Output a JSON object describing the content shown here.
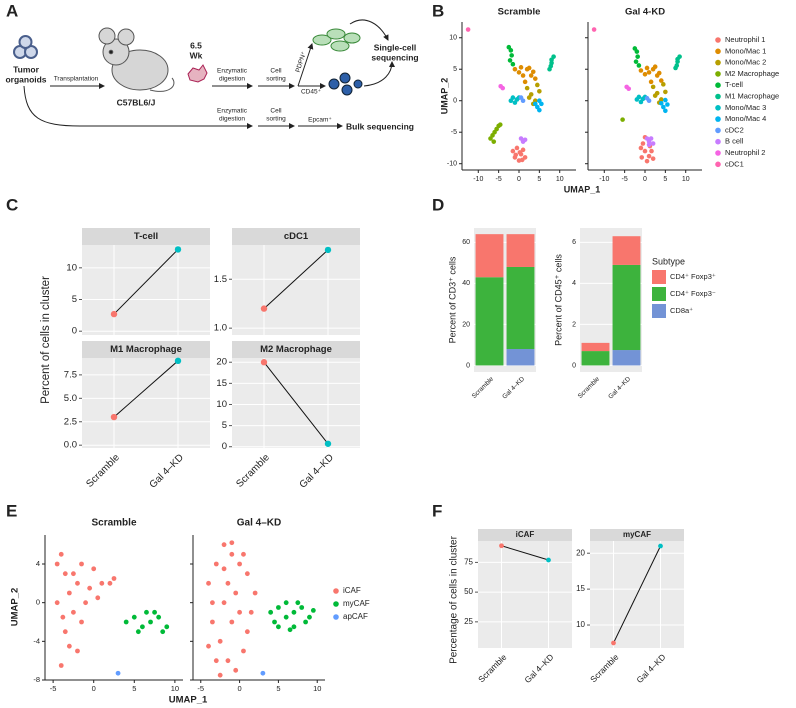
{
  "panel_labels": [
    "A",
    "B",
    "C",
    "D",
    "E",
    "F"
  ],
  "diagram": {
    "organoids": [
      "Tumor",
      "organoids"
    ],
    "transplantation": "Transplantation",
    "mouse": "C57BL6/J",
    "time_value": "6.5",
    "time_unit": "Wk",
    "digestion_1": [
      "Enzymatic",
      "digestion"
    ],
    "sorting_1": [
      "Cell",
      "sorting"
    ],
    "marker_pdpn": "PDPN⁺",
    "marker_cd45": "CD45⁺",
    "single_cell": [
      "Single-cell",
      "sequencing"
    ],
    "digestion_2": [
      "Enzymatic",
      "digestion"
    ],
    "sorting_2": [
      "Cell",
      "sorting"
    ],
    "marker_epcam": "Epcam⁺",
    "bulk": "Bulk sequencing"
  },
  "chart_data": [
    {
      "type": "scatter",
      "facets": [
        "Scramble",
        "Gal 4-KD"
      ],
      "xlabel": "UMAP_1",
      "ylabel": "UMAP_2",
      "xlim": [
        -14,
        14
      ],
      "xticks": [
        -10,
        -5,
        0,
        5,
        10
      ],
      "ylim": [
        -11,
        12.5
      ],
      "yticks": [
        -10,
        -5,
        0,
        5,
        10
      ],
      "series": [
        {
          "name": "Neutrophil 1",
          "color": "#F8766D",
          "points": [
            {
              "x": [
                -1.5,
                -0.5,
                0.5,
                1.5,
                0,
                -1,
                1,
                0.2,
                -0.8,
                0.8
              ],
              "y": [
                -8,
                -7.5,
                -8.5,
                -9,
                -9.5,
                -9,
                -7.8,
                -8.2,
                -8.6,
                -9.4
              ]
            },
            {
              "x": [
                -1,
                0,
                1,
                2,
                0.5,
                -0.5,
                1.2,
                0,
                -0.8,
                1.6
              ],
              "y": [
                -7.5,
                -8,
                -8.8,
                -9.2,
                -9.6,
                -6.8,
                -7.2,
                -5.8,
                -9,
                -8
              ]
            }
          ]
        },
        {
          "name": "Mono/Mac 1",
          "color": "#DE8C00",
          "points": [
            {
              "x": [
                -1,
                0,
                1,
                2,
                3,
                4,
                1.5,
                2.5,
                0.5,
                3.5
              ],
              "y": [
                5,
                4.5,
                4,
                5,
                4,
                3.5,
                3,
                5.2,
                5.3,
                4.6
              ]
            },
            {
              "x": [
                -1,
                0,
                1,
                2,
                3,
                4,
                1.5,
                2.5,
                0.5,
                3.5
              ],
              "y": [
                4.8,
                4.2,
                4.5,
                5,
                4,
                3.2,
                3,
                5.4,
                5.2,
                4.4
              ]
            }
          ]
        },
        {
          "name": "Mono/Mac 2",
          "color": "#B79F00",
          "points": [
            {
              "x": [
                2,
                3,
                4,
                5,
                3.5,
                4.5,
                2.5
              ],
              "y": [
                2,
                1,
                0,
                1.5,
                -0.5,
                2.5,
                0.5
              ]
            },
            {
              "x": [
                2,
                3,
                4,
                5,
                3.5,
                4.5,
                2.5
              ],
              "y": [
                2.2,
                1.2,
                0.2,
                1.4,
                -0.3,
                2.6,
                0.8
              ]
            }
          ]
        },
        {
          "name": "M2 Macrophage",
          "color": "#7CAE00",
          "points": [
            {
              "x": [
                -7,
                -6.5,
                -6,
                -5.5,
                -5,
                -6.2,
                -4.6
              ],
              "y": [
                -6,
                -5.5,
                -5,
                -4.5,
                -4,
                -6.5,
                -3.8
              ]
            },
            {
              "x": [
                -5.5
              ],
              "y": [
                -3
              ]
            }
          ]
        },
        {
          "name": "T-cell",
          "color": "#00BA38",
          "points": [
            {
              "x": [
                -2.5,
                -2,
                -1.8,
                -2.2,
                -1.5
              ],
              "y": [
                8.5,
                8,
                7.2,
                6.4,
                5.8
              ]
            },
            {
              "x": [
                -2.5,
                -2,
                -1.8,
                -2.2,
                -1.5
              ],
              "y": [
                8.3,
                7.8,
                7,
                6.2,
                5.6
              ]
            }
          ]
        },
        {
          "name": "M1 Macrophage",
          "color": "#00C08B",
          "points": [
            {
              "x": [
                7.5,
                8,
                8.5,
                8,
                7.8
              ],
              "y": [
                5,
                6,
                7,
                6.5,
                5.5
              ]
            },
            {
              "x": [
                7.5,
                8,
                8.5,
                8,
                7.8
              ],
              "y": [
                5.2,
                6.2,
                7,
                6.6,
                5.6
              ]
            }
          ]
        },
        {
          "name": "Mono/Mac 3",
          "color": "#00BFC4",
          "points": [
            {
              "x": [
                -2,
                -1.5,
                -1,
                -0.5,
                0
              ],
              "y": [
                0,
                0.5,
                -0.3,
                0.2,
                0.5
              ]
            },
            {
              "x": [
                -2,
                -1.5,
                -1,
                -0.5,
                0
              ],
              "y": [
                0.2,
                0.6,
                -0.2,
                0.3,
                0.6
              ]
            }
          ]
        },
        {
          "name": "Mono/Mac 4",
          "color": "#00B4F0",
          "points": [
            {
              "x": [
                4,
                4.5,
                5,
                5.5,
                5
              ],
              "y": [
                -0.5,
                -1,
                -1.5,
                -0.5,
                0
              ]
            },
            {
              "x": [
                4,
                4.5,
                5,
                5.5,
                5
              ],
              "y": [
                -0.4,
                -1,
                -1.6,
                -0.6,
                0.1
              ]
            }
          ]
        },
        {
          "name": "cDC2",
          "color": "#619CFF",
          "points": [
            {
              "x": [
                0.5,
                1
              ],
              "y": [
                0.5,
                0
              ]
            },
            {
              "x": [
                0.5,
                1
              ],
              "y": [
                0.4,
                0
              ]
            }
          ]
        },
        {
          "name": "B cell",
          "color": "#C77CFF",
          "points": [
            {
              "x": [
                0.5,
                1,
                1.5
              ],
              "y": [
                -6,
                -6.5,
                -6.2
              ]
            },
            {
              "x": [
                0.5,
                1,
                1.5,
                1,
                2
              ],
              "y": [
                -6,
                -6.5,
                -6,
                -7,
                -6.8
              ]
            }
          ]
        },
        {
          "name": "Neutrophil 2",
          "color": "#F564E3",
          "points": [
            {
              "x": [
                -4.5,
                -4
              ],
              "y": [
                2.3,
                2
              ]
            },
            {
              "x": [
                -4.5,
                -4
              ],
              "y": [
                2.2,
                1.9
              ]
            }
          ]
        },
        {
          "name": "cDC1",
          "color": "#FF64B0",
          "points": [
            {
              "x": [
                -12.5
              ],
              "y": [
                11.3
              ]
            },
            {
              "x": [
                -12.5
              ],
              "y": [
                11.3
              ]
            }
          ]
        }
      ]
    },
    {
      "type": "line",
      "ylabel": "Percent of cells in cluster",
      "categories": [
        "Scramble",
        "Gal 4–KD"
      ],
      "point_colors": [
        "#F8766D",
        "#00BFC4"
      ],
      "facets": [
        {
          "title": "T-cell",
          "values": [
            2.7,
            12.9
          ],
          "ylim": [
            -0.6,
            13.6
          ],
          "yticks": [
            0,
            5,
            10
          ]
        },
        {
          "title": "cDC1",
          "values": [
            1.2,
            1.8
          ],
          "ylim": [
            0.93,
            1.85
          ],
          "yticks": [
            {
              "value": 1,
              "label": "1.0"
            },
            1.5
          ]
        },
        {
          "title": "M1 Macrophage",
          "values": [
            3,
            9
          ],
          "ylim": [
            -0.3,
            9.3
          ],
          "yticks": [
            {
              "value": 0,
              "label": "0.0"
            },
            2.5,
            {
              "value": 5,
              "label": "5.0"
            },
            7.5
          ]
        },
        {
          "title": "M2 Macrophage",
          "values": [
            20,
            0.7
          ],
          "ylim": [
            -0.3,
            21
          ],
          "yticks": [
            0,
            5,
            10,
            15,
            20
          ]
        }
      ]
    },
    {
      "type": "bar",
      "categories": [
        "Scramble",
        "Gal 4–KD"
      ],
      "legend_title": "Subtype",
      "series": [
        {
          "name": "CD4⁺ Foxp3⁺",
          "color": "#F8766D"
        },
        {
          "name": "CD4⁺ Foxp3⁻",
          "color": "#3DB33D"
        },
        {
          "name": "CD8a⁺",
          "color": "#7393D6"
        }
      ],
      "facets": [
        {
          "ylabel": "Percent of CD3⁺ cells",
          "ylim": [
            -3.2,
            67
          ],
          "yticks": [
            0,
            20,
            40,
            60
          ],
          "values": [
            [
              21,
              16
            ],
            [
              43,
              40
            ],
            [
              0,
              8
            ]
          ]
        },
        {
          "ylabel": "Percent of CD45⁺ cells",
          "ylim": [
            -0.32,
            6.7
          ],
          "yticks": [
            0,
            2,
            4,
            6
          ],
          "values": [
            [
              0.4,
              1.4
            ],
            [
              0.7,
              4.15
            ],
            [
              0,
              0.75
            ]
          ]
        }
      ]
    },
    {
      "type": "scatter",
      "facets": [
        "Scramble",
        "Gal 4–KD"
      ],
      "xlabel": "UMAP_1",
      "ylabel": "UMAP_2",
      "xlim": [
        -6,
        11
      ],
      "xticks": [
        -5,
        0,
        5,
        10
      ],
      "ylim": [
        -8,
        7
      ],
      "yticks": [
        -8,
        -4,
        0,
        4
      ],
      "series": [
        {
          "name": "iCAF",
          "color": "#F8766D",
          "points": [
            {
              "x": [
                -4.5,
                -4,
                -3.5,
                -3,
                -2.5,
                -2,
                -1.5,
                -1,
                0,
                1,
                2,
                2.5,
                -3.5,
                -2,
                -4,
                -1.5,
                -3,
                0.5,
                -4.5,
                -2.5,
                -0.5,
                -3.8
              ],
              "y": [
                4,
                5,
                3,
                1,
                -1,
                2,
                4,
                0,
                3.5,
                2,
                2,
                2.5,
                -3,
                -5,
                -6.5,
                -2,
                -4.5,
                0.5,
                0,
                3,
                1.5,
                -1.5
              ]
            },
            {
              "x": [
                -4,
                -3,
                -2,
                -1,
                0,
                1,
                2,
                -3.5,
                -2.5,
                -1.5,
                -0.5,
                0.5,
                -2,
                -1,
                0,
                -3,
                -1.5,
                1,
                -2.5,
                -0.5,
                -3.5,
                -2,
                -1,
                0.5,
                -4,
                1.5
              ],
              "y": [
                2,
                4,
                6,
                5,
                4,
                3,
                1,
                -2,
                -4,
                -6,
                -7,
                -5,
                0,
                -2,
                -1,
                -6,
                2,
                -3,
                -7.5,
                1,
                0,
                3.5,
                6.2,
                5,
                -4.5,
                -1
              ]
            }
          ]
        },
        {
          "name": "myCAF",
          "color": "#00BA38",
          "points": [
            {
              "x": [
                4,
                5,
                6,
                7,
                8,
                9,
                5.5,
                7.5,
                8.5,
                6.5
              ],
              "y": [
                -2,
                -1.5,
                -2.5,
                -2,
                -1.5,
                -2.5,
                -3,
                -1,
                -3,
                -1
              ]
            },
            {
              "x": [
                4,
                5,
                6,
                7,
                8,
                9,
                5,
                7,
                8.5,
                6,
                4.5,
                9.5,
                7.5,
                6.5
              ],
              "y": [
                -1,
                -0.5,
                -1.5,
                -1,
                -0.5,
                -1.5,
                -2.5,
                -2.5,
                -2,
                0,
                -2,
                -0.8,
                0,
                -2.8
              ]
            }
          ]
        },
        {
          "name": "apCAF",
          "color": "#619CFF",
          "points": [
            {
              "x": [
                3
              ],
              "y": [
                -7.3
              ]
            },
            {
              "x": [
                3
              ],
              "y": [
                -7.3
              ]
            }
          ]
        }
      ]
    },
    {
      "type": "line",
      "ylabel": "Percentage of cells in cluster",
      "categories": [
        "Scramble",
        "Gal 4–KD"
      ],
      "point_colors": [
        "#F8766D",
        "#00BFC4"
      ],
      "facets": [
        {
          "title": "iCAF",
          "values": [
            89,
            77
          ],
          "ylim": [
            3,
            93
          ],
          "yticks": [
            25,
            50,
            75
          ]
        },
        {
          "title": "myCAF",
          "values": [
            7.5,
            21
          ],
          "ylim": [
            6.8,
            21.7
          ],
          "yticks": [
            10,
            15,
            20
          ]
        }
      ]
    }
  ]
}
